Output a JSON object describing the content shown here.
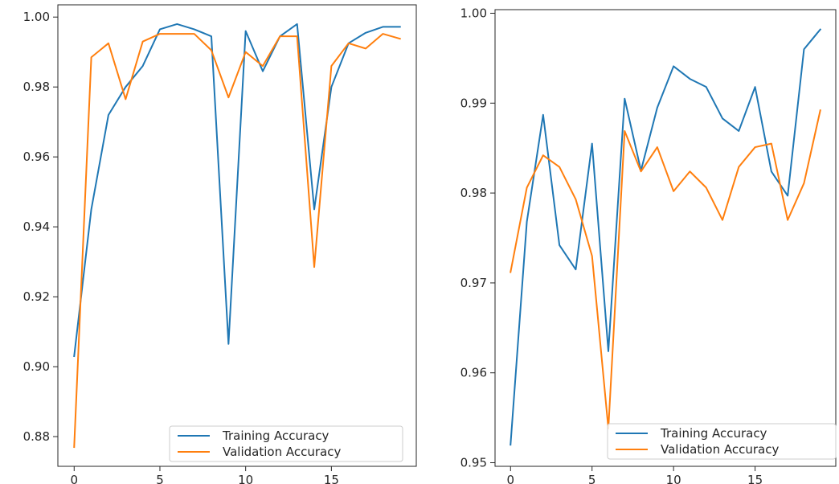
{
  "colors": {
    "training": "#1f77b4",
    "validation": "#ff7f0e"
  },
  "chart_data": [
    {
      "type": "line",
      "xlim": [
        -0.95,
        19.95
      ],
      "ylim": [
        0.8715,
        1.0035
      ],
      "xticks": [
        0,
        5,
        10,
        15
      ],
      "yticks": [
        0.88,
        0.9,
        0.92,
        0.94,
        0.96,
        0.98,
        1.0
      ],
      "ytick_labels": [
        "0.88",
        "0.90",
        "0.92",
        "0.94",
        "0.96",
        "0.98",
        "1.00"
      ],
      "legend_position": "lower-right",
      "x": [
        0,
        1,
        2,
        3,
        4,
        5,
        6,
        7,
        8,
        9,
        10,
        11,
        12,
        13,
        14,
        15,
        16,
        17,
        18,
        19
      ],
      "series": [
        {
          "name": "Training Accuracy",
          "color": "#1f77b4",
          "values": [
            0.903,
            0.945,
            0.972,
            0.98,
            0.986,
            0.9965,
            0.998,
            0.9965,
            0.9945,
            0.9065,
            0.996,
            0.9845,
            0.9945,
            0.998,
            0.945,
            0.98,
            0.9925,
            0.9955,
            0.9972,
            0.9972
          ]
        },
        {
          "name": "Validation Accuracy",
          "color": "#ff7f0e",
          "values": [
            0.877,
            0.9885,
            0.9925,
            0.9765,
            0.993,
            0.9952,
            0.9952,
            0.9952,
            0.9905,
            0.977,
            0.99,
            0.986,
            0.9945,
            0.9945,
            0.9285,
            0.986,
            0.9925,
            0.991,
            0.9952,
            0.9938
          ]
        }
      ]
    },
    {
      "type": "line",
      "xlim": [
        -0.95,
        19.95
      ],
      "ylim": [
        0.9496,
        1.0004
      ],
      "xticks": [
        0,
        5,
        10,
        15
      ],
      "yticks": [
        0.95,
        0.96,
        0.97,
        0.98,
        0.99,
        1.0
      ],
      "ytick_labels": [
        "0.95",
        "0.96",
        "0.97",
        "0.98",
        "0.99",
        "1.00"
      ],
      "legend_position": "lower-right",
      "x": [
        0,
        1,
        2,
        3,
        4,
        5,
        6,
        7,
        8,
        9,
        10,
        11,
        12,
        13,
        14,
        15,
        16,
        17,
        18,
        19
      ],
      "series": [
        {
          "name": "Training Accuracy",
          "color": "#1f77b4",
          "values": [
            0.952,
            0.9768,
            0.9887,
            0.9742,
            0.9715,
            0.9855,
            0.9624,
            0.9905,
            0.9825,
            0.9895,
            0.9941,
            0.9927,
            0.9918,
            0.9883,
            0.9869,
            0.9918,
            0.9824,
            0.9797,
            0.996,
            0.9982
          ]
        },
        {
          "name": "Validation Accuracy",
          "color": "#ff7f0e",
          "values": [
            0.9712,
            0.9806,
            0.9842,
            0.9829,
            0.9793,
            0.973,
            0.9538,
            0.9869,
            0.9824,
            0.9851,
            0.9802,
            0.9824,
            0.9806,
            0.977,
            0.9829,
            0.9851,
            0.9855,
            0.977,
            0.9811,
            0.9892
          ]
        }
      ]
    }
  ]
}
